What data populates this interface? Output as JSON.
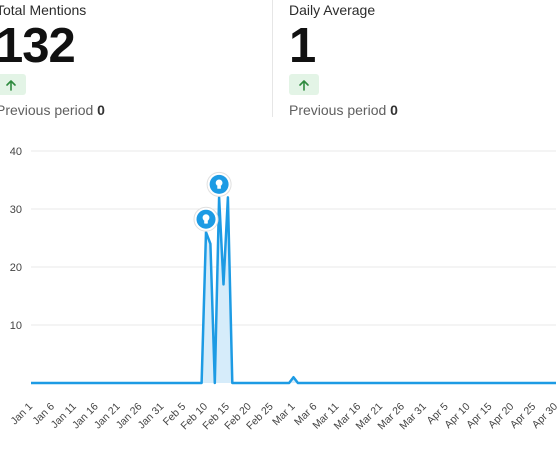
{
  "stats": [
    {
      "label": "Total Mentions",
      "value": "132",
      "trend_icon": "arrow-up-icon",
      "prev_label": "Previous period",
      "prev_value": "0"
    },
    {
      "label": "Daily Average",
      "value": "1",
      "trend_icon": "arrow-up-icon",
      "prev_label": "Previous period",
      "prev_value": "0"
    }
  ],
  "colors": {
    "line": "#1d9be4",
    "fill": "#d6ecfa",
    "trend_up": "#2e8b3e",
    "trend_bg": "#e3f4e6",
    "grid": "#e9e9e9"
  },
  "chart_data": {
    "type": "area",
    "title": "",
    "xlabel": "",
    "ylabel": "",
    "ylim": [
      0,
      40
    ],
    "yticks": [
      10,
      20,
      30,
      40
    ],
    "grid": true,
    "x_ticks": [
      "Jan 1",
      "Jan 6",
      "Jan 11",
      "Jan 16",
      "Jan 21",
      "Jan 26",
      "Jan 31",
      "Feb 5",
      "Feb 10",
      "Feb 15",
      "Feb 20",
      "Feb 25",
      "Mar 1",
      "Mar 6",
      "Mar 11",
      "Mar 16",
      "Mar 21",
      "Mar 26",
      "Mar 31",
      "Apr 5",
      "Apr 10",
      "Apr 15",
      "Apr 20",
      "Apr 25",
      "Apr 30"
    ],
    "series": [
      {
        "values": [
          {
            "date": "Jan 1",
            "y": 0
          },
          {
            "date": "Feb 9",
            "y": 0
          },
          {
            "date": "Feb 10",
            "y": 26
          },
          {
            "date": "Feb 11",
            "y": 24
          },
          {
            "date": "Feb 12",
            "y": 0
          },
          {
            "date": "Feb 13",
            "y": 32
          },
          {
            "date": "Feb 14",
            "y": 17
          },
          {
            "date": "Feb 15",
            "y": 32
          },
          {
            "date": "Feb 16",
            "y": 0
          },
          {
            "date": "Feb 29",
            "y": 0
          },
          {
            "date": "Mar 1",
            "y": 1
          },
          {
            "date": "Mar 2",
            "y": 0
          },
          {
            "date": "Apr 30",
            "y": 0
          }
        ]
      }
    ],
    "annotations": [
      {
        "date": "Feb 10",
        "y": 26,
        "icon": "lightbulb-icon"
      },
      {
        "date": "Feb 13",
        "y": 32,
        "icon": "lightbulb-icon"
      }
    ]
  }
}
